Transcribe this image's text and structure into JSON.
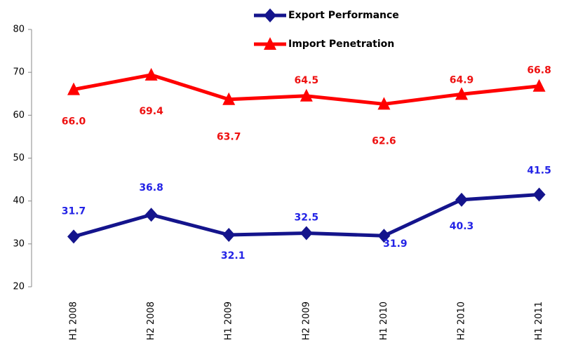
{
  "chart_data": {
    "type": "line",
    "categories": [
      "H1 2008",
      "H2 2008",
      "H1 2009",
      "H2 2009",
      "H1 2010",
      "H2 2010",
      "H1 2011"
    ],
    "series": [
      {
        "name": "Export Performance",
        "color": "#14148c",
        "label_color": "#2323e6",
        "values": [
          31.7,
          36.8,
          32.1,
          32.5,
          31.9,
          40.3,
          41.5
        ],
        "value_labels": [
          "31.7",
          "36.8",
          "32.1",
          "32.5",
          "31.9",
          "40.3",
          "41.5"
        ]
      },
      {
        "name": "Import Penetration",
        "color": "#ff0000",
        "label_color": "#ee1111",
        "values": [
          66.0,
          69.4,
          63.7,
          64.5,
          62.6,
          64.9,
          66.8
        ],
        "value_labels": [
          "66.0",
          "69.4",
          "63.7",
          "64.5",
          "62.6",
          "64.9",
          "66.8"
        ]
      }
    ],
    "ylim": [
      20,
      80
    ],
    "yticks": [
      20,
      30,
      40,
      50,
      60,
      70,
      80
    ],
    "grid": false,
    "legend": "top"
  }
}
